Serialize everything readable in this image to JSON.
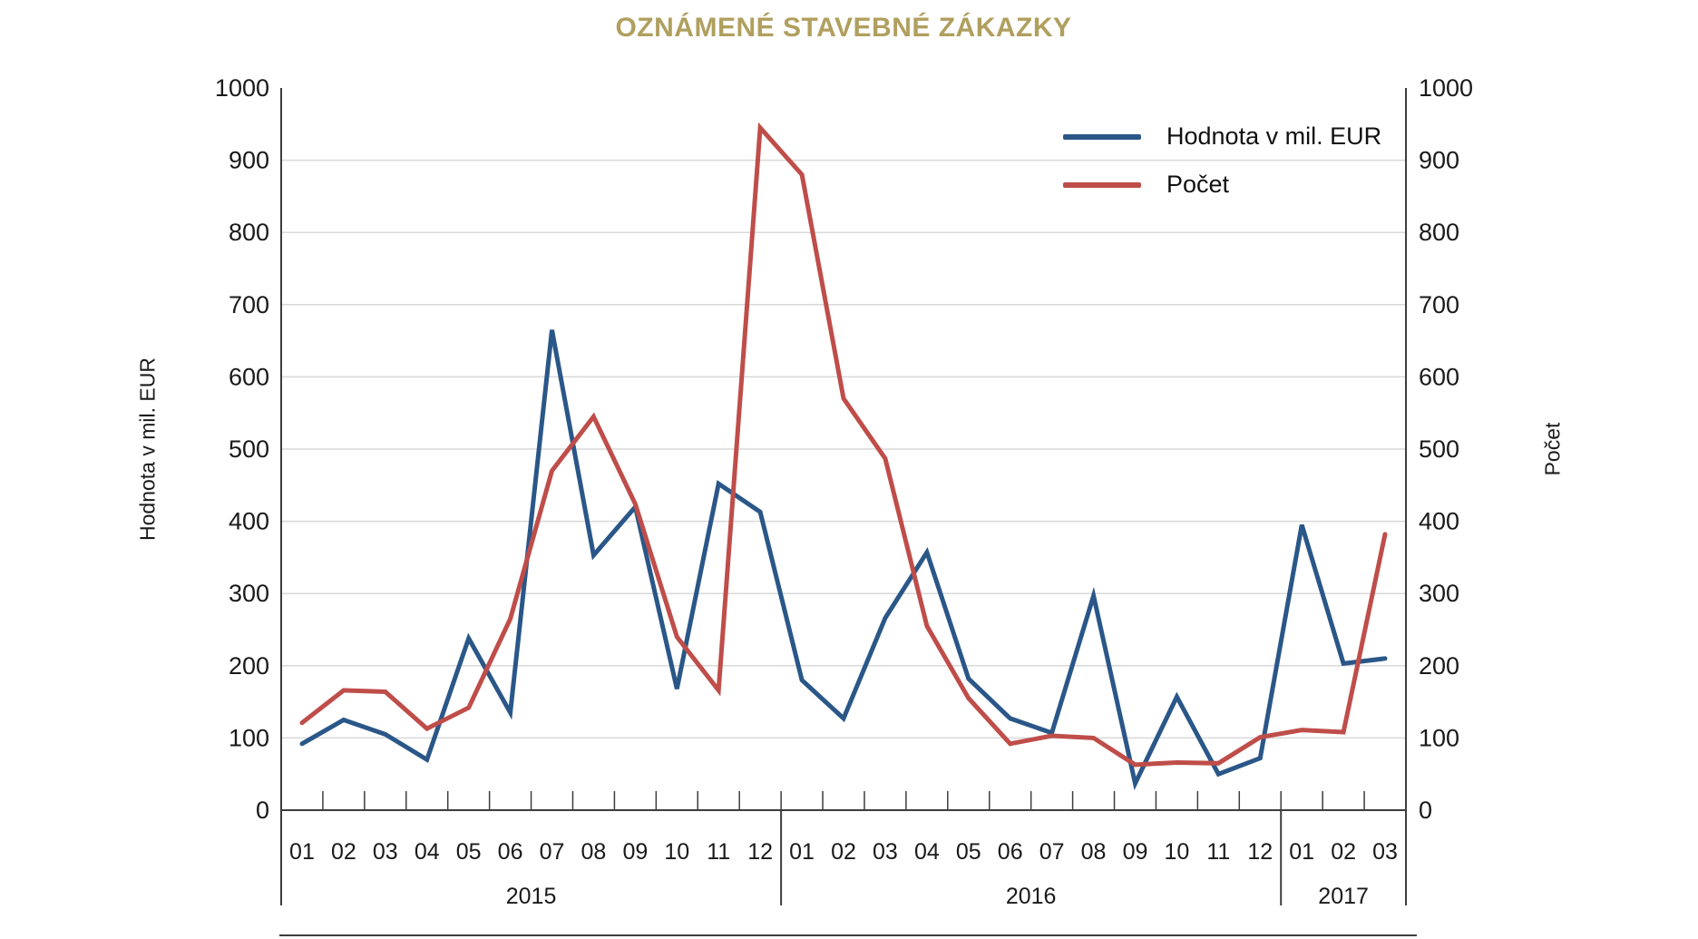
{
  "title": "OZNÁMENÉ STAVEBNÉ ZÁKAZKY",
  "colors": {
    "title": "#b09f5e",
    "grid": "#d9d9d9",
    "axis": "#3d3d3d",
    "text": "#1a1a1a",
    "series_hodnota": "#2a5788",
    "series_pocet": "#bf4d49"
  },
  "legend": {
    "items": [
      {
        "label": "Hodnota v mil. EUR",
        "color": "#2a5788"
      },
      {
        "label": "Počet",
        "color": "#bf4d49"
      }
    ]
  },
  "chart_data": {
    "type": "line",
    "title": "OZNÁMENÉ STAVEBNÉ ZÁKAZKY",
    "grid": true,
    "legend_position": "top-right",
    "left_axis": {
      "label": "Hodnota v mil. EUR",
      "min": 0,
      "max": 1000,
      "step": 100
    },
    "right_axis": {
      "label": "Počet",
      "min": 0,
      "max": 1000,
      "step": 100
    },
    "x_groups": [
      {
        "year": "2015",
        "months": [
          "01",
          "02",
          "03",
          "04",
          "05",
          "06",
          "07",
          "08",
          "09",
          "10",
          "11",
          "12"
        ]
      },
      {
        "year": "2016",
        "months": [
          "01",
          "02",
          "03",
          "04",
          "05",
          "06",
          "07",
          "08",
          "09",
          "10",
          "11",
          "12"
        ]
      },
      {
        "year": "2017",
        "months": [
          "01",
          "02",
          "03"
        ]
      }
    ],
    "series": [
      {
        "name": "Hodnota v mil. EUR",
        "axis": "left",
        "color": "#2a5788",
        "values": [
          92,
          125,
          105,
          70,
          238,
          135,
          665,
          353,
          420,
          168,
          452,
          413,
          180,
          127,
          266,
          357,
          182,
          127,
          107,
          297,
          37,
          157,
          50,
          72,
          395,
          203,
          210
        ]
      },
      {
        "name": "Počet",
        "axis": "right",
        "color": "#bf4d49",
        "values": [
          121,
          166,
          164,
          113,
          142,
          265,
          470,
          545,
          424,
          240,
          166,
          945,
          880,
          570,
          487,
          255,
          155,
          92,
          103,
          100,
          63,
          66,
          65,
          101,
          111,
          108,
          382
        ]
      }
    ]
  }
}
